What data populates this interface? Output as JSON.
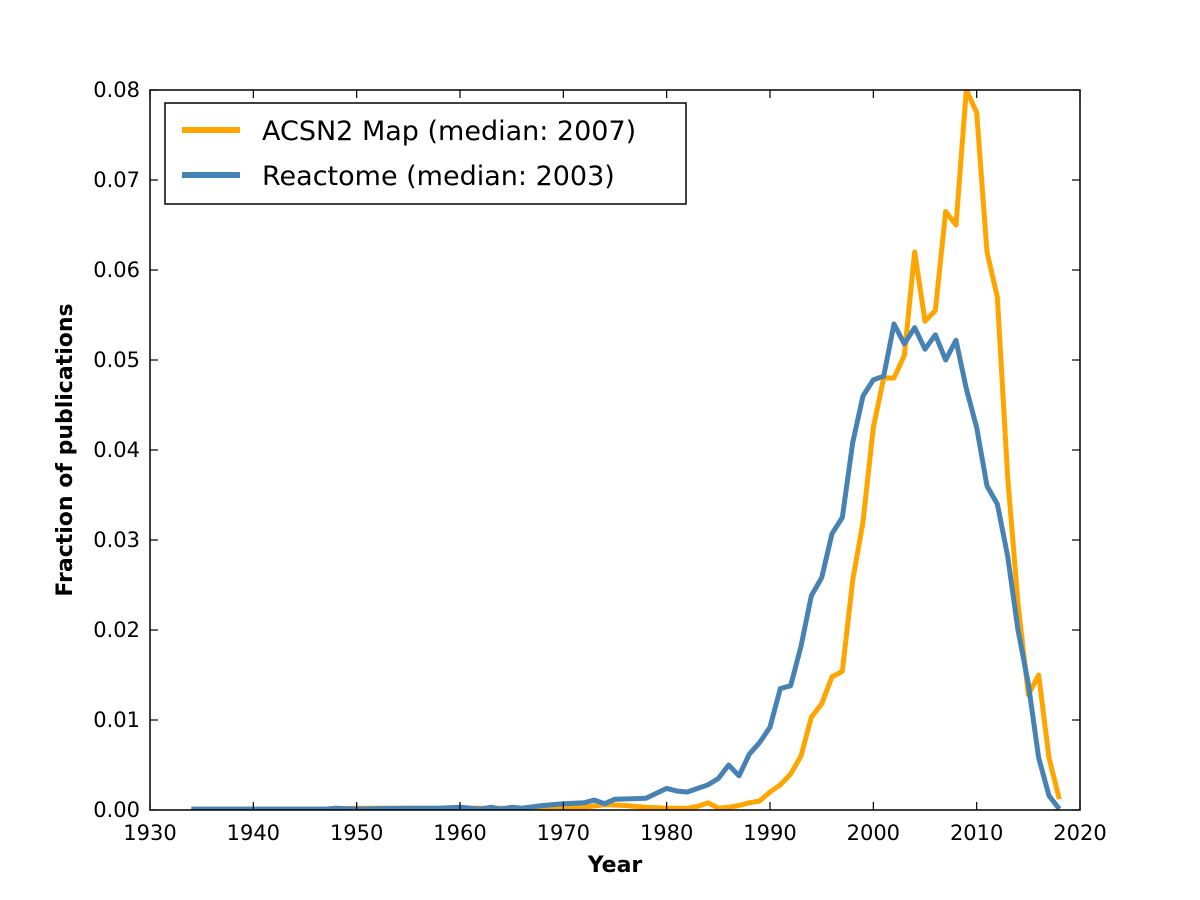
{
  "chart_data": {
    "type": "line",
    "title": "",
    "xlabel": "Year",
    "ylabel": "Fraction of publications",
    "xlim": [
      1930,
      2020
    ],
    "ylim": [
      0,
      0.08
    ],
    "xticks": [
      1930,
      1940,
      1950,
      1960,
      1970,
      1980,
      1990,
      2000,
      2010,
      2020
    ],
    "yticks": [
      0.0,
      0.01,
      0.02,
      0.03,
      0.04,
      0.05,
      0.06,
      0.07,
      0.08
    ],
    "xtick_labels": [
      "1930",
      "1940",
      "1950",
      "1960",
      "1970",
      "1980",
      "1990",
      "2000",
      "2010",
      "2020"
    ],
    "ytick_labels": [
      "0.00",
      "0.01",
      "0.02",
      "0.03",
      "0.04",
      "0.05",
      "0.06",
      "0.07",
      "0.08"
    ],
    "legend_position": "top-left",
    "grid": false,
    "series": [
      {
        "name": "ACSN2 Map (median: 2007)",
        "color": "#FFA500",
        "points": [
          [
            1934,
            0.0001
          ],
          [
            1940,
            0.0001
          ],
          [
            1945,
            0.0001
          ],
          [
            1948,
            0.0001
          ],
          [
            1950,
            0.0002
          ],
          [
            1955,
            0.0002
          ],
          [
            1960,
            0.0002
          ],
          [
            1965,
            0.0002
          ],
          [
            1970,
            0.0002
          ],
          [
            1972,
            0.0003
          ],
          [
            1974,
            0.0006
          ],
          [
            1976,
            0.0005
          ],
          [
            1978,
            0.0003
          ],
          [
            1980,
            0.0002
          ],
          [
            1982,
            0.0002
          ],
          [
            1983,
            0.0004
          ],
          [
            1984,
            0.0008
          ],
          [
            1985,
            0.0002
          ],
          [
            1986,
            0.0003
          ],
          [
            1987,
            0.0005
          ],
          [
            1988,
            0.0008
          ],
          [
            1989,
            0.001
          ],
          [
            1990,
            0.002
          ],
          [
            1991,
            0.0028
          ],
          [
            1992,
            0.004
          ],
          [
            1993,
            0.006
          ],
          [
            1994,
            0.0103
          ],
          [
            1995,
            0.0118
          ],
          [
            1996,
            0.0148
          ],
          [
            1997,
            0.0154
          ],
          [
            1998,
            0.0255
          ],
          [
            1999,
            0.032
          ],
          [
            2000,
            0.0425
          ],
          [
            2001,
            0.048
          ],
          [
            2002,
            0.048
          ],
          [
            2003,
            0.0505
          ],
          [
            2004,
            0.062
          ],
          [
            2005,
            0.0543
          ],
          [
            2006,
            0.0555
          ],
          [
            2007,
            0.0665
          ],
          [
            2008,
            0.065
          ],
          [
            2009,
            0.08
          ],
          [
            2010,
            0.0775
          ],
          [
            2011,
            0.062
          ],
          [
            2012,
            0.057
          ],
          [
            2013,
            0.037
          ],
          [
            2014,
            0.023
          ],
          [
            2015,
            0.0128
          ],
          [
            2016,
            0.015
          ],
          [
            2017,
            0.0058
          ],
          [
            2018,
            0.0012
          ]
        ]
      },
      {
        "name": "Reactome (median: 2003)",
        "color": "#4682B4",
        "points": [
          [
            1934,
            0.0001
          ],
          [
            1940,
            0.0001
          ],
          [
            1945,
            0.0001
          ],
          [
            1947,
            0.0001
          ],
          [
            1948,
            0.0002
          ],
          [
            1950,
            0.0001
          ],
          [
            1955,
            0.0002
          ],
          [
            1958,
            0.0002
          ],
          [
            1960,
            0.0003
          ],
          [
            1962,
            0.0001
          ],
          [
            1963,
            0.0003
          ],
          [
            1964,
            0.0001
          ],
          [
            1965,
            0.0003
          ],
          [
            1966,
            0.0002
          ],
          [
            1968,
            0.0005
          ],
          [
            1970,
            0.0007
          ],
          [
            1972,
            0.0008
          ],
          [
            1973,
            0.0011
          ],
          [
            1974,
            0.0007
          ],
          [
            1975,
            0.0012
          ],
          [
            1978,
            0.0013
          ],
          [
            1980,
            0.0024
          ],
          [
            1981,
            0.0021
          ],
          [
            1982,
            0.002
          ],
          [
            1984,
            0.0028
          ],
          [
            1985,
            0.0035
          ],
          [
            1986,
            0.005
          ],
          [
            1987,
            0.0038
          ],
          [
            1988,
            0.0062
          ],
          [
            1989,
            0.0075
          ],
          [
            1990,
            0.0092
          ],
          [
            1991,
            0.0135
          ],
          [
            1992,
            0.0138
          ],
          [
            1993,
            0.0182
          ],
          [
            1994,
            0.0238
          ],
          [
            1995,
            0.0258
          ],
          [
            1996,
            0.0307
          ],
          [
            1997,
            0.0325
          ],
          [
            1998,
            0.0408
          ],
          [
            1999,
            0.046
          ],
          [
            2000,
            0.0478
          ],
          [
            2001,
            0.0482
          ],
          [
            2002,
            0.054
          ],
          [
            2003,
            0.0518
          ],
          [
            2004,
            0.0536
          ],
          [
            2005,
            0.0512
          ],
          [
            2006,
            0.0528
          ],
          [
            2007,
            0.05
          ],
          [
            2008,
            0.0522
          ],
          [
            2009,
            0.0468
          ],
          [
            2010,
            0.0425
          ],
          [
            2011,
            0.036
          ],
          [
            2012,
            0.034
          ],
          [
            2013,
            0.0282
          ],
          [
            2014,
            0.02
          ],
          [
            2015,
            0.014
          ],
          [
            2016,
            0.0058
          ],
          [
            2017,
            0.0016
          ],
          [
            2018,
            0.0001
          ]
        ]
      }
    ]
  }
}
